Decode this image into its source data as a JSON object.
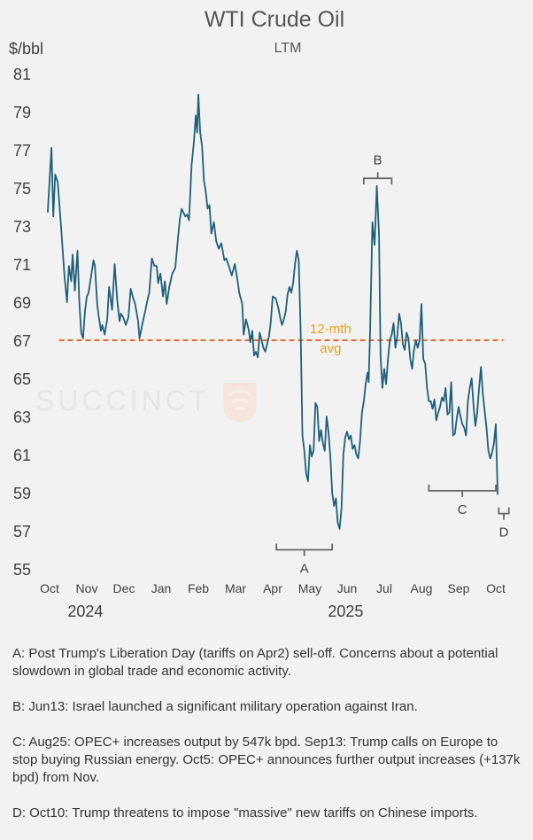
{
  "chart_data": {
    "type": "line",
    "title": "WTI Crude Oil",
    "subtitle": "LTM",
    "ylabel": "$/bbl",
    "ylim": [
      55,
      81
    ],
    "yticks": [
      55,
      57,
      59,
      61,
      63,
      65,
      67,
      69,
      71,
      73,
      75,
      77,
      79,
      81
    ],
    "xlim": [
      0,
      12.3
    ],
    "month_ticks": [
      {
        "label": "Oct",
        "pos": 0
      },
      {
        "label": "Nov",
        "pos": 1
      },
      {
        "label": "Dec",
        "pos": 2
      },
      {
        "label": "Jan",
        "pos": 3
      },
      {
        "label": "Feb",
        "pos": 4
      },
      {
        "label": "Mar",
        "pos": 5
      },
      {
        "label": "Apr",
        "pos": 6
      },
      {
        "label": "May",
        "pos": 7
      },
      {
        "label": "Jun",
        "pos": 8
      },
      {
        "label": "Jul",
        "pos": 9
      },
      {
        "label": "Aug",
        "pos": 10
      },
      {
        "label": "Sep",
        "pos": 11
      },
      {
        "label": "Oct",
        "pos": 12
      }
    ],
    "years": [
      {
        "label": "2024",
        "pos": 1.2
      },
      {
        "label": "2025",
        "pos": 8.2
      }
    ],
    "series": [
      {
        "name": "WTI Crude Oil",
        "color": "#1f5f7a",
        "points": [
          [
            -0.05,
            73.7
          ],
          [
            0.05,
            77.1
          ],
          [
            0.1,
            73.5
          ],
          [
            0.15,
            75.7
          ],
          [
            0.22,
            75.3
          ],
          [
            0.3,
            73.2
          ],
          [
            0.4,
            70.4
          ],
          [
            0.47,
            69.0
          ],
          [
            0.52,
            70.9
          ],
          [
            0.58,
            70.1
          ],
          [
            0.62,
            71.5
          ],
          [
            0.68,
            69.6
          ],
          [
            0.75,
            71.7
          ],
          [
            0.8,
            69.0
          ],
          [
            0.85,
            67.4
          ],
          [
            0.9,
            67.1
          ],
          [
            0.95,
            68.5
          ],
          [
            1.0,
            69.3
          ],
          [
            1.05,
            69.5
          ],
          [
            1.12,
            70.4
          ],
          [
            1.18,
            71.2
          ],
          [
            1.22,
            70.9
          ],
          [
            1.28,
            68.9
          ],
          [
            1.32,
            68.3
          ],
          [
            1.38,
            67.5
          ],
          [
            1.42,
            67.8
          ],
          [
            1.48,
            67.3
          ],
          [
            1.55,
            68.1
          ],
          [
            1.6,
            69.8
          ],
          [
            1.68,
            68.6
          ],
          [
            1.75,
            71.0
          ],
          [
            1.82,
            69.1
          ],
          [
            1.88,
            68.0
          ],
          [
            1.92,
            68.4
          ],
          [
            1.98,
            68.2
          ],
          [
            2.05,
            67.8
          ],
          [
            2.12,
            68.2
          ],
          [
            2.18,
            69.7
          ],
          [
            2.25,
            69.2
          ],
          [
            2.3,
            68.9
          ],
          [
            2.38,
            68.0
          ],
          [
            2.42,
            67.1
          ],
          [
            2.5,
            67.9
          ],
          [
            2.58,
            68.6
          ],
          [
            2.62,
            69.0
          ],
          [
            2.68,
            69.5
          ],
          [
            2.75,
            71.3
          ],
          [
            2.82,
            70.9
          ],
          [
            2.88,
            70.9
          ],
          [
            2.92,
            70.0
          ],
          [
            2.98,
            70.5
          ],
          [
            3.05,
            69.3
          ],
          [
            3.1,
            70.1
          ],
          [
            3.15,
            68.9
          ],
          [
            3.22,
            69.8
          ],
          [
            3.3,
            70.5
          ],
          [
            3.38,
            70.8
          ],
          [
            3.45,
            72.3
          ],
          [
            3.5,
            73.3
          ],
          [
            3.55,
            73.9
          ],
          [
            3.6,
            73.7
          ],
          [
            3.65,
            73.5
          ],
          [
            3.7,
            73.6
          ],
          [
            3.75,
            73.3
          ],
          [
            3.82,
            76.2
          ],
          [
            3.88,
            77.4
          ],
          [
            3.93,
            78.8
          ],
          [
            3.97,
            77.9
          ],
          [
            4.0,
            79.9
          ],
          [
            4.05,
            77.9
          ],
          [
            4.1,
            77.2
          ],
          [
            4.15,
            75.4
          ],
          [
            4.2,
            74.8
          ],
          [
            4.25,
            73.9
          ],
          [
            4.3,
            74.1
          ],
          [
            4.35,
            72.6
          ],
          [
            4.42,
            73.2
          ],
          [
            4.48,
            72.2
          ],
          [
            4.55,
            71.8
          ],
          [
            4.62,
            72.1
          ],
          [
            4.7,
            71.2
          ],
          [
            4.75,
            71.3
          ],
          [
            4.82,
            70.9
          ],
          [
            4.9,
            70.4
          ],
          [
            4.98,
            71.0
          ],
          [
            5.05,
            70.2
          ],
          [
            5.1,
            69.5
          ],
          [
            5.18,
            68.9
          ],
          [
            5.22,
            67.3
          ],
          [
            5.28,
            68.1
          ],
          [
            5.35,
            67.6
          ],
          [
            5.4,
            66.9
          ],
          [
            5.45,
            67.5
          ],
          [
            5.5,
            66.2
          ],
          [
            5.55,
            66.4
          ],
          [
            5.6,
            66.1
          ],
          [
            5.65,
            67.4
          ],
          [
            5.7,
            67.0
          ],
          [
            5.75,
            66.6
          ],
          [
            5.8,
            66.4
          ],
          [
            5.85,
            66.8
          ],
          [
            5.9,
            67.2
          ],
          [
            5.95,
            68.0
          ],
          [
            6.0,
            69.3
          ],
          [
            6.08,
            69.2
          ],
          [
            6.15,
            68.7
          ],
          [
            6.2,
            68.2
          ],
          [
            6.25,
            67.8
          ],
          [
            6.3,
            68.1
          ],
          [
            6.35,
            68.5
          ],
          [
            6.4,
            69.4
          ],
          [
            6.45,
            69.8
          ],
          [
            6.5,
            69.5
          ],
          [
            6.55,
            70.0
          ],
          [
            6.6,
            71.0
          ],
          [
            6.65,
            71.7
          ],
          [
            6.7,
            71.2
          ],
          [
            6.75,
            67.6
          ],
          [
            6.8,
            62.0
          ],
          [
            6.85,
            61.2
          ],
          [
            6.9,
            60.0
          ],
          [
            6.95,
            59.6
          ],
          [
            7.0,
            61.5
          ],
          [
            7.05,
            60.9
          ],
          [
            7.1,
            61.2
          ],
          [
            7.15,
            63.7
          ],
          [
            7.2,
            63.5
          ],
          [
            7.25,
            61.7
          ],
          [
            7.3,
            62.3
          ],
          [
            7.35,
            61.6
          ],
          [
            7.4,
            61.2
          ],
          [
            7.45,
            63.0
          ],
          [
            7.5,
            62.2
          ],
          [
            7.55,
            60.9
          ],
          [
            7.6,
            59.0
          ],
          [
            7.65,
            58.3
          ],
          [
            7.7,
            58.7
          ],
          [
            7.75,
            57.4
          ],
          [
            7.8,
            57.1
          ],
          [
            7.85,
            58.2
          ],
          [
            7.9,
            61.0
          ],
          [
            7.95,
            61.9
          ],
          [
            8.0,
            62.2
          ],
          [
            8.05,
            61.8
          ],
          [
            8.1,
            62.0
          ],
          [
            8.15,
            61.3
          ],
          [
            8.2,
            61.5
          ],
          [
            8.25,
            61.0
          ],
          [
            8.3,
            60.8
          ],
          [
            8.35,
            61.7
          ],
          [
            8.4,
            63.2
          ],
          [
            8.45,
            63.8
          ],
          [
            8.5,
            64.7
          ],
          [
            8.55,
            65.3
          ],
          [
            8.58,
            64.8
          ],
          [
            8.62,
            67.5
          ],
          [
            8.68,
            73.2
          ],
          [
            8.74,
            72.0
          ],
          [
            8.8,
            75.1
          ],
          [
            8.86,
            72.5
          ],
          [
            8.9,
            66.2
          ],
          [
            8.95,
            64.5
          ],
          [
            9.0,
            65.5
          ],
          [
            9.05,
            64.7
          ],
          [
            9.1,
            66.0
          ],
          [
            9.15,
            67.0
          ],
          [
            9.2,
            67.3
          ],
          [
            9.25,
            67.9
          ],
          [
            9.3,
            66.6
          ],
          [
            9.35,
            67.2
          ],
          [
            9.4,
            68.4
          ],
          [
            9.45,
            67.9
          ],
          [
            9.5,
            66.8
          ],
          [
            9.55,
            66.5
          ],
          [
            9.6,
            67.4
          ],
          [
            9.65,
            67.1
          ],
          [
            9.7,
            66.0
          ],
          [
            9.75,
            65.5
          ],
          [
            9.8,
            66.5
          ],
          [
            9.85,
            67.0
          ],
          [
            9.9,
            66.6
          ],
          [
            9.95,
            67.0
          ],
          [
            10.0,
            68.9
          ],
          [
            10.05,
            66.0
          ],
          [
            10.1,
            65.8
          ],
          [
            10.15,
            64.5
          ],
          [
            10.2,
            63.8
          ],
          [
            10.25,
            63.8
          ],
          [
            10.3,
            63.4
          ],
          [
            10.35,
            63.9
          ],
          [
            10.4,
            62.8
          ],
          [
            10.45,
            63.2
          ],
          [
            10.5,
            63.5
          ],
          [
            10.55,
            64.0
          ],
          [
            10.6,
            63.8
          ],
          [
            10.65,
            64.5
          ],
          [
            10.7,
            63.1
          ],
          [
            10.75,
            63.2
          ],
          [
            10.8,
            64.8
          ],
          [
            10.85,
            62.0
          ],
          [
            10.9,
            62.1
          ],
          [
            10.95,
            62.9
          ],
          [
            11.0,
            63.5
          ],
          [
            11.05,
            63.0
          ],
          [
            11.1,
            62.6
          ],
          [
            11.15,
            62.4
          ],
          [
            11.2,
            62.0
          ],
          [
            11.25,
            63.8
          ],
          [
            11.3,
            64.5
          ],
          [
            11.35,
            65.0
          ],
          [
            11.4,
            63.6
          ],
          [
            11.45,
            62.5
          ],
          [
            11.5,
            63.2
          ],
          [
            11.55,
            64.5
          ],
          [
            11.6,
            65.6
          ],
          [
            11.65,
            64.2
          ],
          [
            11.7,
            63.3
          ],
          [
            11.75,
            62.4
          ],
          [
            11.8,
            61.2
          ],
          [
            11.85,
            60.8
          ],
          [
            11.9,
            61.1
          ],
          [
            11.95,
            61.6
          ],
          [
            12.0,
            62.6
          ],
          [
            12.05,
            58.9
          ]
        ]
      }
    ],
    "average_line": {
      "value": 67.0,
      "x0": 0.25,
      "x1": 12.2,
      "label_line1": "12-mth",
      "label_line2": "avg",
      "color": "#e8692f",
      "label_color": "#e8a020",
      "label_x": 7.2
    },
    "annotations": [
      {
        "label": "A",
        "x0": 6.1,
        "x1": 7.6,
        "type": "below",
        "y": 56.0
      },
      {
        "label": "B",
        "x0": 8.45,
        "x1": 9.2,
        "type": "above",
        "y": 75.5
      },
      {
        "label": "C",
        "x0": 10.2,
        "x1": 12.0,
        "type": "below",
        "y": 59.1
      },
      {
        "label": "D",
        "x0": 12.08,
        "x1": 12.35,
        "type": "below",
        "y": 57.9
      }
    ],
    "watermark": "SUCCINCT"
  },
  "notes": [
    "A:  Post Trump's Liberation Day (tariffs on Apr2) sell-off. Concerns about a potential slowdown in global trade and economic activity.",
    "B:  Jun13: Israel launched a significant military operation against Iran.",
    "C:  Aug25: OPEC+ increases output by 547k bpd. Sep13: Trump calls on Europe to stop buying Russian energy. Oct5: OPEC+ announces further output increases (+137k bpd) from Nov.",
    "D:  Oct10: Trump threatens to impose \"massive\" new tariffs on Chinese imports."
  ]
}
